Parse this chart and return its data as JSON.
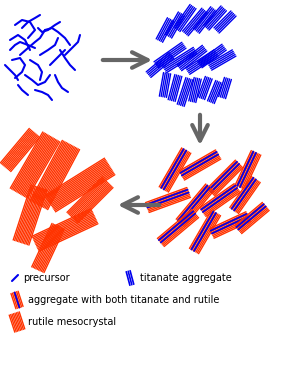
{
  "blue": "#0000EE",
  "red": "#FF3300",
  "arrow_color": "#666666",
  "bg_color": "#FFFFFF",
  "legend_texts": [
    "precursor",
    "titanate aggregate",
    "aggregate with both titanate and rutile",
    "rutile mesocrystal"
  ],
  "figsize": [
    2.81,
    3.74
  ],
  "dpi": 100
}
